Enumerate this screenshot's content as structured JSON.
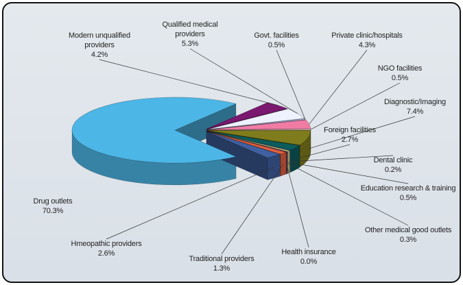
{
  "chart_data": {
    "type": "pie",
    "categories": [
      "Drug outlets",
      "Modern unqualified providers",
      "Qualified medical providers",
      "Govt. facilities",
      "Private clinic/hospitals",
      "NGO facilities",
      "Diagnostic/Imaging",
      "Foreign facilities",
      "Dental clinic",
      "Education research & training",
      "Other medical good outlets",
      "Health insurance",
      "Traditional providers",
      "Hmeopathic providers"
    ],
    "values": [
      70.3,
      4.2,
      5.3,
      0.5,
      4.3,
      0.5,
      7.4,
      2.7,
      0.2,
      0.5,
      0.3,
      0.0,
      1.3,
      2.6
    ],
    "value_labels": [
      "70.3%",
      "4.2%",
      "5.3%",
      "0.5%",
      "4.3%",
      "0.5%",
      "7.4%",
      "2.7%",
      "0.2%",
      "0.5%",
      "0.3%",
      "0.0%",
      "1.3%",
      "2.6%"
    ],
    "colors": [
      "#4cb6e6",
      "#7b1870",
      "#eef2ff",
      "#b8b8e8",
      "#f07ca4",
      "#ffd8d8",
      "#7e7c1c",
      "#0b5c5c",
      "#9aa0d8",
      "#d0d080",
      "#603060",
      "#c0c0c0",
      "#e06040",
      "#4060a0"
    ]
  }
}
